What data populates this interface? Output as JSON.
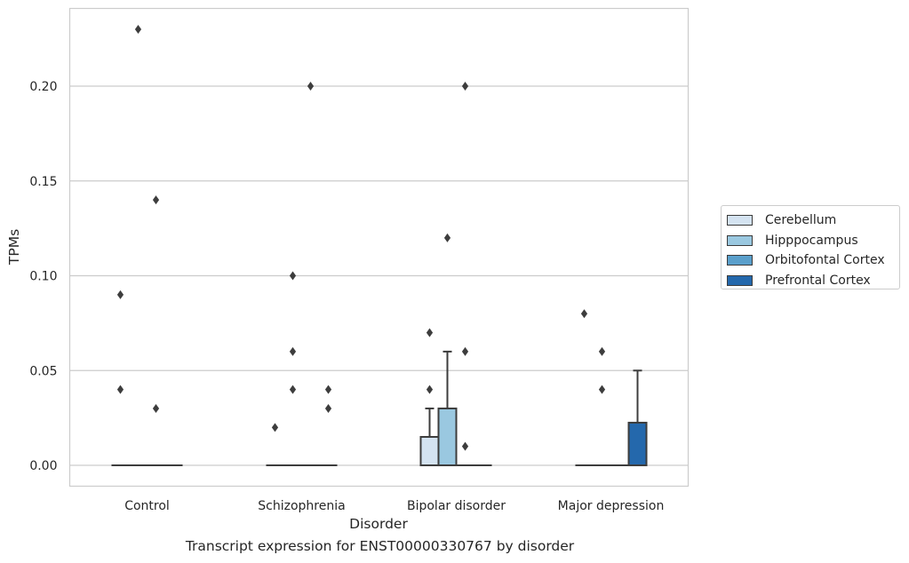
{
  "chart_data": {
    "type": "box",
    "xlabel": "Disorder",
    "ylabel": "TPMs",
    "ylim": [
      -0.011,
      0.241
    ],
    "yticks": [
      "0.00",
      "0.05",
      "0.10",
      "0.15",
      "0.20"
    ],
    "grid": "horizontal",
    "legend_position": "right",
    "categories": [
      "Control",
      "Schizophrenia",
      "Bipolar disorder",
      "Major depression"
    ],
    "series": [
      {
        "name": "Cerebellum",
        "color": "#d4e3f1",
        "boxes": [
          {
            "category": "Control",
            "q1": 0,
            "q3": 0,
            "median": 0,
            "whisker_low": 0,
            "whisker_high": 0,
            "outliers": [
              0.04,
              0.09
            ]
          },
          {
            "category": "Schizophrenia",
            "q1": 0,
            "q3": 0,
            "median": 0,
            "whisker_low": 0,
            "whisker_high": 0,
            "outliers": [
              0.02
            ]
          },
          {
            "category": "Bipolar disorder",
            "q1": 0,
            "q3": 0.015,
            "median": 0,
            "whisker_low": 0,
            "whisker_high": 0.03,
            "outliers": [
              0.04,
              0.07
            ]
          },
          {
            "category": "Major depression",
            "q1": 0,
            "q3": 0,
            "median": 0,
            "whisker_low": 0,
            "whisker_high": 0,
            "outliers": [
              0.08
            ]
          }
        ]
      },
      {
        "name": "Hipppocampus",
        "color": "#9ac8e0",
        "boxes": [
          {
            "category": "Control",
            "q1": 0,
            "q3": 0,
            "median": 0,
            "whisker_low": 0,
            "whisker_high": 0,
            "outliers": [
              0.23
            ]
          },
          {
            "category": "Schizophrenia",
            "q1": 0,
            "q3": 0,
            "median": 0,
            "whisker_low": 0,
            "whisker_high": 0,
            "outliers": [
              0.04,
              0.06,
              0.1
            ]
          },
          {
            "category": "Bipolar disorder",
            "q1": 0,
            "q3": 0.03,
            "median": 0,
            "whisker_low": 0,
            "whisker_high": 0.06,
            "outliers": [
              0.12
            ]
          },
          {
            "category": "Major depression",
            "q1": 0,
            "q3": 0,
            "median": 0,
            "whisker_low": 0,
            "whisker_high": 0,
            "outliers": [
              0.04,
              0.06
            ]
          }
        ]
      },
      {
        "name": "Orbitofontal Cortex",
        "color": "#5a9fcb",
        "boxes": [
          {
            "category": "Control",
            "q1": 0,
            "q3": 0,
            "median": 0,
            "whisker_low": 0,
            "whisker_high": 0,
            "outliers": [
              0.03,
              0.14
            ]
          },
          {
            "category": "Schizophrenia",
            "q1": 0,
            "q3": 0,
            "median": 0,
            "whisker_low": 0,
            "whisker_high": 0,
            "outliers": [
              0.2
            ]
          },
          {
            "category": "Bipolar disorder",
            "q1": 0,
            "q3": 0,
            "median": 0,
            "whisker_low": 0,
            "whisker_high": 0,
            "outliers": [
              0.01,
              0.06,
              0.2
            ]
          },
          {
            "category": "Major depression",
            "q1": 0,
            "q3": 0,
            "median": 0,
            "whisker_low": 0,
            "whisker_high": 0,
            "outliers": []
          }
        ]
      },
      {
        "name": "Prefrontal Cortex",
        "color": "#2468ac",
        "boxes": [
          {
            "category": "Control",
            "q1": 0,
            "q3": 0,
            "median": 0,
            "whisker_low": 0,
            "whisker_high": 0,
            "outliers": []
          },
          {
            "category": "Schizophrenia",
            "q1": 0,
            "q3": 0,
            "median": 0,
            "whisker_low": 0,
            "whisker_high": 0,
            "outliers": [
              0.03,
              0.04
            ]
          },
          {
            "category": "Bipolar disorder",
            "q1": 0,
            "q3": 0,
            "median": 0,
            "whisker_low": 0,
            "whisker_high": 0,
            "outliers": []
          },
          {
            "category": "Major depression",
            "q1": 0,
            "q3": 0.0225,
            "median": 0,
            "whisker_low": 0,
            "whisker_high": 0.05,
            "outliers": []
          }
        ]
      }
    ]
  },
  "caption": "Transcript expression for ENST00000330767 by disorder"
}
